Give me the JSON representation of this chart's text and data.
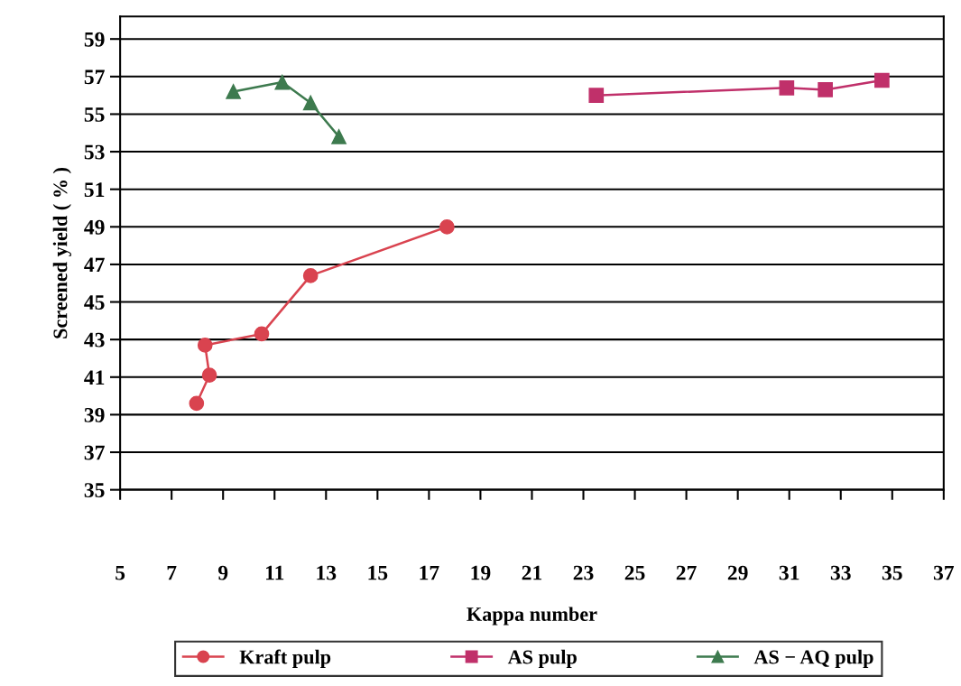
{
  "chart_data": {
    "type": "line",
    "xlabel": "Kappa number",
    "ylabel": "Screened yield ( % )",
    "xlim": [
      5,
      37
    ],
    "xticks": [
      5,
      7,
      9,
      11,
      13,
      15,
      17,
      19,
      21,
      23,
      25,
      27,
      29,
      31,
      33,
      35,
      37
    ],
    "ylim": [
      35,
      60.2
    ],
    "yticks": [
      35,
      37,
      39,
      41,
      43,
      45,
      47,
      49,
      51,
      53,
      55,
      57,
      59
    ],
    "grid": "y",
    "legend": "bottom",
    "line_style": "solid",
    "series": [
      {
        "name": "Kraft pulp",
        "color": "#d9434f",
        "marker": "circle",
        "x": [
          7.97,
          8.47,
          8.3,
          10.5,
          12.4,
          17.7
        ],
        "values": [
          39.6,
          41.1,
          42.7,
          43.3,
          46.4,
          49.0
        ]
      },
      {
        "name": "AS pulp",
        "color": "#c0306a",
        "marker": "square",
        "x": [
          23.5,
          30.9,
          32.4,
          34.6
        ],
        "values": [
          56.0,
          56.4,
          56.3,
          56.8
        ]
      },
      {
        "name": "AS − AQ pulp",
        "color": "#3d7a4e",
        "marker": "triangle",
        "x": [
          9.4,
          11.3,
          12.4,
          13.5
        ],
        "values": [
          56.2,
          56.7,
          55.6,
          53.8
        ]
      }
    ]
  }
}
